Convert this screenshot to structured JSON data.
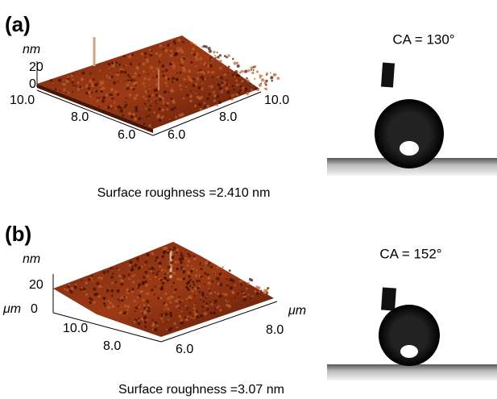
{
  "panels": [
    {
      "label": "(a)",
      "z_unit": "nm",
      "z_ticks": [
        "20",
        "0"
      ],
      "left_axis_ticks": [
        "10.0",
        "8.0",
        "6.0"
      ],
      "right_axis_ticks": [
        "6.0",
        "8.0",
        "10.0"
      ],
      "contact_angle": "CA = 130°",
      "roughness": "Surface roughness =2.410 nm"
    },
    {
      "label": "(b)",
      "z_unit": "nm",
      "z_ticks": [
        "20",
        "0"
      ],
      "xy_unit_left": "μm",
      "left_axis_ticks": [
        "10.0",
        "8.0"
      ],
      "right_axis_ticks": [
        "6.0",
        "8.0"
      ],
      "xy_unit_right": "μm",
      "contact_angle": "CA = 152°",
      "roughness": "Surface roughness =3.07 nm"
    }
  ]
}
